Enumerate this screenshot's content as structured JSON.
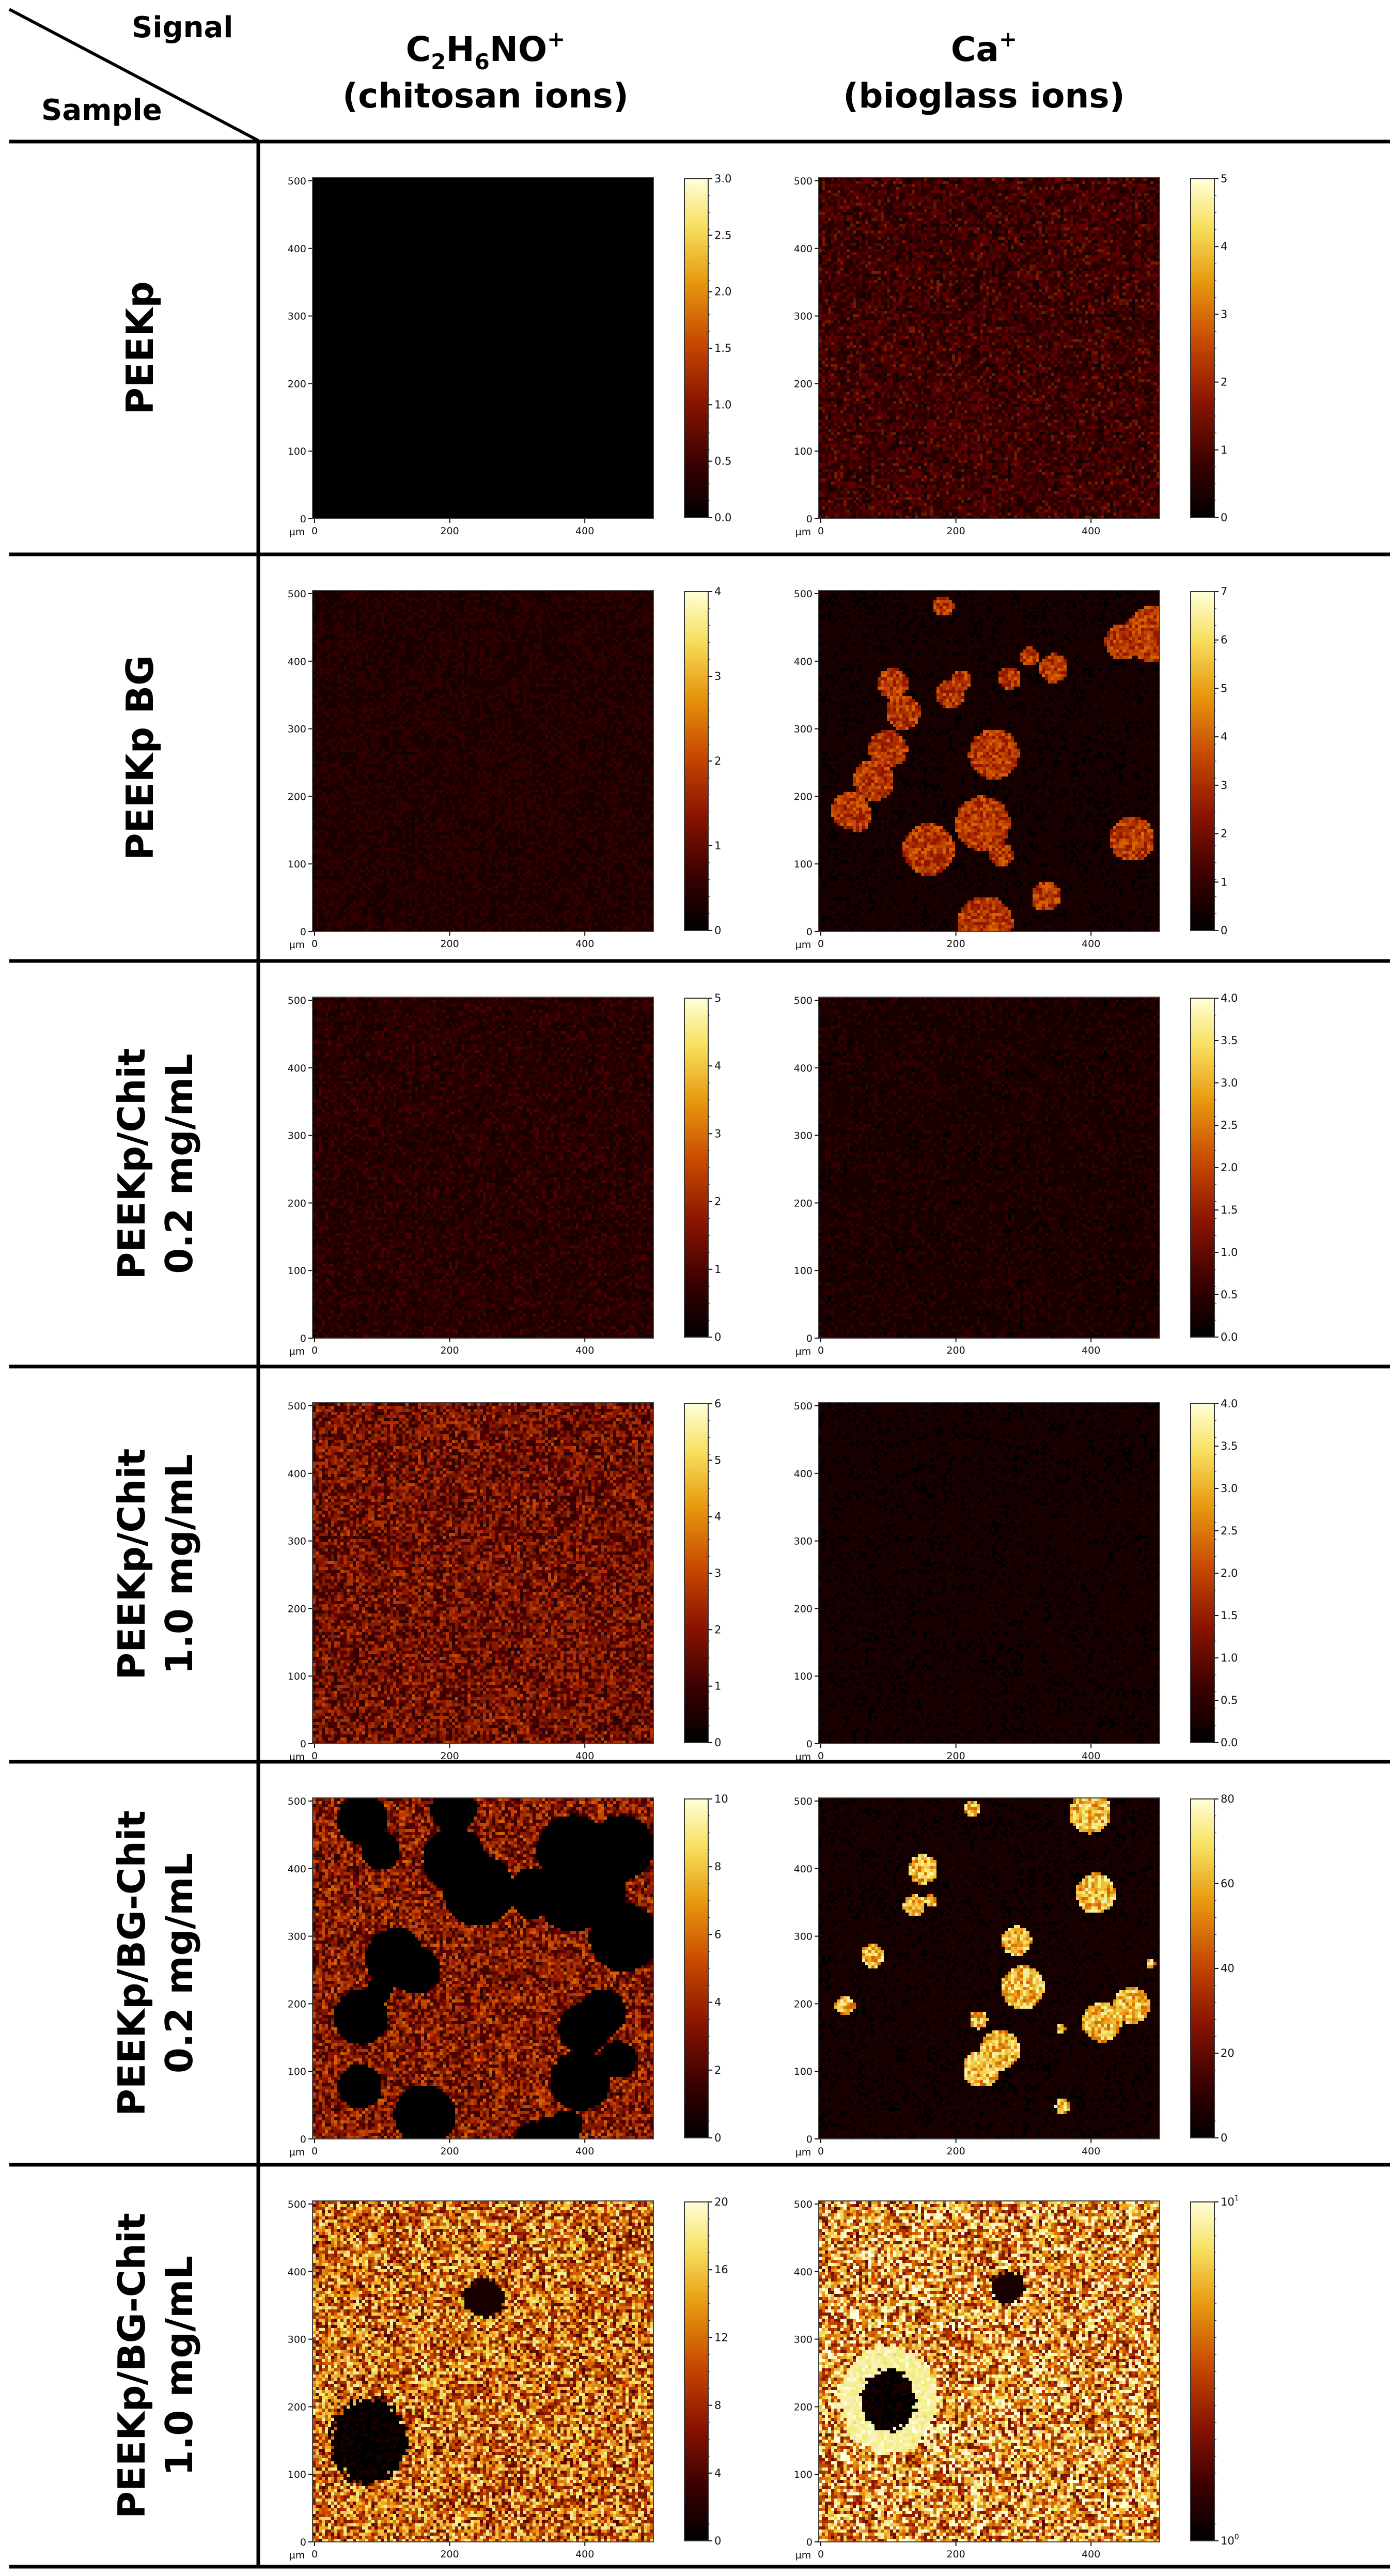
{
  "header": {
    "corner_signal": "Signal",
    "corner_sample": "Sample",
    "col1_formula": {
      "main": "C",
      "sub1": "2",
      "mid1": "H",
      "sub2": "6",
      "tail": "NO",
      "sup": "+"
    },
    "col1_subtitle": "(chitosan ions)",
    "col2_formula": {
      "main": "Ca",
      "sup": "+"
    },
    "col2_subtitle": "(bioglass ions)"
  },
  "axis": {
    "unit": "µm",
    "x_ticks": [
      "0",
      "200",
      "400"
    ],
    "y_ticks": [
      "0",
      "100",
      "200",
      "300",
      "400",
      "500"
    ]
  },
  "rows": [
    {
      "label_lines": [
        "PEEKp"
      ],
      "cells": [
        {
          "ticks": [
            "0.0",
            "0.5",
            "1.0",
            "1.5",
            "2.0",
            "2.5",
            "3.0"
          ],
          "color_scale": "linear",
          "brightness": 0.02,
          "blobs": "none"
        },
        {
          "ticks": [
            "0",
            "1",
            "2",
            "3",
            "4",
            "5"
          ],
          "color_scale": "linear",
          "brightness": 0.18,
          "blobs": "none"
        }
      ]
    },
    {
      "label_lines": [
        "PEEKp BG"
      ],
      "cells": [
        {
          "ticks": [
            "0",
            "1",
            "2",
            "3",
            "4"
          ],
          "color_scale": "linear",
          "brightness": 0.1,
          "blobs": "none"
        },
        {
          "ticks": [
            "0",
            "1",
            "2",
            "3",
            "4",
            "5",
            "6",
            "7"
          ],
          "color_scale": "linear",
          "brightness": 0.06,
          "blobs": "bioglass-particles"
        }
      ]
    },
    {
      "label_lines": [
        "PEEKp/Chit",
        "0.2 mg/mL"
      ],
      "cells": [
        {
          "ticks": [
            "0",
            "1",
            "2",
            "3",
            "4",
            "5"
          ],
          "color_scale": "linear",
          "brightness": 0.12,
          "blobs": "none"
        },
        {
          "ticks": [
            "0.0",
            "0.5",
            "1.0",
            "1.5",
            "2.0",
            "2.5",
            "3.0",
            "3.5",
            "4.0"
          ],
          "color_scale": "linear",
          "brightness": 0.08,
          "blobs": "none"
        }
      ]
    },
    {
      "label_lines": [
        "PEEKp/Chit",
        "1.0 mg/mL"
      ],
      "cells": [
        {
          "ticks": [
            "0",
            "1",
            "2",
            "3",
            "4",
            "5",
            "6"
          ],
          "color_scale": "linear",
          "brightness": 0.3,
          "blobs": "none"
        },
        {
          "ticks": [
            "0.0",
            "0.5",
            "1.0",
            "1.5",
            "2.0",
            "2.5",
            "3.0",
            "3.5",
            "4.0"
          ],
          "color_scale": "linear",
          "brightness": 0.06,
          "blobs": "none"
        }
      ]
    },
    {
      "label_lines": [
        "PEEKp/BG-Chit",
        "0.2 mg/mL"
      ],
      "cells": [
        {
          "ticks": [
            "0",
            "2",
            "4",
            "6",
            "8",
            "10"
          ],
          "color_scale": "linear",
          "brightness": 0.35,
          "blobs": "dark-patches"
        },
        {
          "ticks": [
            "0",
            "20",
            "40",
            "60",
            "80"
          ],
          "color_scale": "linear",
          "brightness": 0.06,
          "blobs": "bright-spots"
        }
      ]
    },
    {
      "label_lines": [
        "PEEKp/BG-Chit",
        "1.0 mg/mL"
      ],
      "cells": [
        {
          "ticks": [
            "0",
            "4",
            "8",
            "12",
            "16",
            "20"
          ],
          "color_scale": "linear",
          "brightness": 0.6,
          "blobs": "dark-region"
        },
        {
          "ticks": [
            "10^0",
            "10^1"
          ],
          "color_scale": "log",
          "brightness": 0.7,
          "blobs": "bright-ring"
        }
      ]
    }
  ],
  "colors": {
    "colormap_stops": [
      "#000000",
      "#3a0000",
      "#8a1400",
      "#c84a00",
      "#e89a10",
      "#f7e060",
      "#ffffd8"
    ],
    "line": "#000000"
  }
}
